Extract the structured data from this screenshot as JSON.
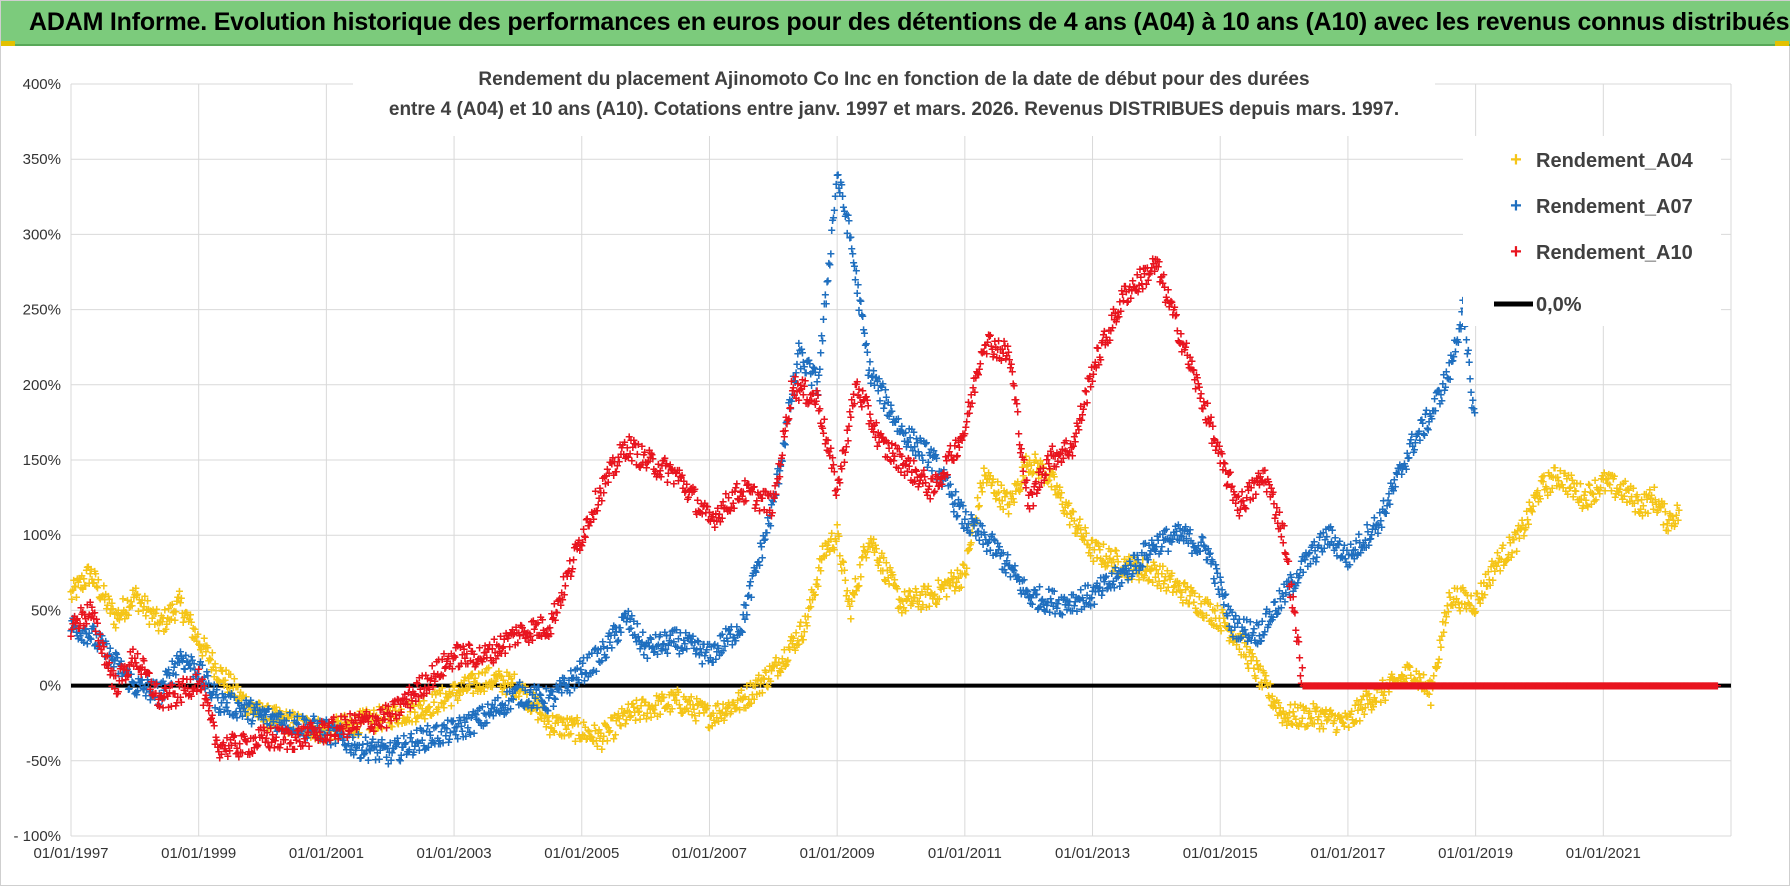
{
  "banner": {
    "title": "ADAM Informe. Evolution historique des performances en euros pour des détentions de 4 ans (A04) à 10 ans (A10) avec les revenus connus distribués"
  },
  "colors": {
    "a04": "#f5c518",
    "a07": "#1f6fbf",
    "a10": "#e8141e",
    "zero": "#000000",
    "banner": "#7ccb7c"
  },
  "chart_data": {
    "type": "scatter",
    "title_line1": "Rendement du placement Ajinomoto Co Inc en fonction de la date de début pour des durées",
    "title_line2": "entre 4 (A04) et 10 ans (A10).  Cotations entre janv. 1997 et mars. 2026. Revenus DISTRIBUES depuis mars. 1997.",
    "xlim": [
      1997.0,
      2023.0
    ],
    "ylim": [
      -100,
      400
    ],
    "y_ticks": [
      -100,
      -50,
      0,
      50,
      100,
      150,
      200,
      250,
      300,
      350,
      400
    ],
    "y_tick_labels": [
      "- 100%",
      "-50%",
      "0%",
      "50%",
      "100%",
      "150%",
      "200%",
      "250%",
      "300%",
      "350%",
      "400%"
    ],
    "x_ticks": [
      1997,
      1999,
      2001,
      2003,
      2005,
      2007,
      2009,
      2011,
      2013,
      2015,
      2017,
      2019,
      2021
    ],
    "x_tick_labels": [
      "01/01/1997",
      "01/01/1999",
      "01/01/2001",
      "01/01/2003",
      "01/01/2005",
      "01/01/2007",
      "01/01/2009",
      "01/01/2011",
      "01/01/2013",
      "01/01/2015",
      "01/01/2017",
      "01/01/2019",
      "01/01/2021"
    ],
    "legend_position": "top-right",
    "series": [
      {
        "name": "Rendement_A04",
        "key": "a04",
        "x": [
          1997.0,
          1997.3,
          1997.7,
          1998.0,
          1998.4,
          1998.7,
          1999.0,
          1999.3,
          1999.7,
          2000.0,
          2000.5,
          2001.0,
          2001.5,
          2002.0,
          2002.5,
          2003.0,
          2003.5,
          2004.0,
          2004.5,
          2005.0,
          2005.3,
          2005.7,
          2006.0,
          2006.5,
          2007.0,
          2007.5,
          2008.0,
          2008.5,
          2008.8,
          2009.0,
          2009.2,
          2009.5,
          2010.0,
          2010.5,
          2011.0,
          2011.3,
          2011.7,
          2012.0,
          2012.3,
          2012.7,
          2013.0,
          2013.5,
          2014.0,
          2014.5,
          2015.0,
          2015.3,
          2015.7,
          2016.0,
          2016.5,
          2017.0,
          2017.3,
          2017.7,
          2018.0,
          2018.3,
          2018.6,
          2019.0,
          2019.3,
          2019.7,
          2020.0,
          2020.3,
          2020.7,
          2021.0,
          2021.3,
          2021.6,
          2021.8,
          2022.0,
          2022.2
        ],
        "y": [
          60,
          75,
          45,
          60,
          40,
          55,
          30,
          10,
          -10,
          -20,
          -25,
          -30,
          -25,
          -20,
          -15,
          -5,
          5,
          0,
          -25,
          -30,
          -35,
          -20,
          -15,
          -10,
          -20,
          -10,
          10,
          40,
          90,
          100,
          50,
          100,
          55,
          60,
          75,
          140,
          120,
          150,
          140,
          110,
          90,
          80,
          75,
          60,
          45,
          30,
          0,
          -20,
          -20,
          -25,
          -10,
          0,
          10,
          -5,
          60,
          55,
          80,
          100,
          130,
          140,
          125,
          135,
          130,
          120,
          125,
          110,
          115
        ]
      },
      {
        "name": "Rendement_A07",
        "key": "a07",
        "x": [
          1997.0,
          1997.3,
          1997.7,
          1998.0,
          1998.4,
          1998.7,
          1999.0,
          1999.3,
          1999.7,
          2000.0,
          2000.5,
          2001.0,
          2001.5,
          2002.0,
          2002.5,
          2003.0,
          2003.5,
          2004.0,
          2004.5,
          2005.0,
          2005.3,
          2005.7,
          2006.0,
          2006.5,
          2007.0,
          2007.5,
          2008.0,
          2008.4,
          2008.7,
          2009.0,
          2009.2,
          2009.5,
          2010.0,
          2010.5,
          2011.0,
          2011.5,
          2012.0,
          2012.5,
          2013.0,
          2013.5,
          2014.0,
          2014.4,
          2014.8,
          2015.2,
          2015.6,
          2016.0,
          2016.3,
          2016.7,
          2017.0,
          2017.5,
          2018.0,
          2018.3,
          2018.6,
          2018.8,
          2019.0
        ],
        "y": [
          40,
          35,
          15,
          0,
          -5,
          20,
          10,
          -10,
          -15,
          -20,
          -25,
          -30,
          -40,
          -45,
          -35,
          -30,
          -20,
          -5,
          -10,
          10,
          20,
          45,
          25,
          30,
          20,
          40,
          120,
          220,
          200,
          340,
          300,
          210,
          170,
          150,
          110,
          90,
          60,
          55,
          60,
          75,
          95,
          100,
          90,
          40,
          35,
          60,
          80,
          100,
          85,
          110,
          160,
          180,
          210,
          250,
          170
        ]
      },
      {
        "name": "Rendement_A10",
        "key": "a10",
        "x": [
          1997.0,
          1997.3,
          1997.7,
          1998.0,
          1998.4,
          1998.7,
          1999.0,
          1999.3,
          1999.7,
          2000.0,
          2000.5,
          2001.0,
          2001.5,
          2002.0,
          2002.5,
          2003.0,
          2003.5,
          2004.0,
          2004.5,
          2004.8,
          2005.0,
          2005.3,
          2005.7,
          2006.0,
          2006.5,
          2007.0,
          2007.5,
          2008.0,
          2008.3,
          2008.7,
          2009.0,
          2009.3,
          2009.7,
          2010.0,
          2010.5,
          2011.0,
          2011.3,
          2011.7,
          2012.0,
          2012.3,
          2012.7,
          2013.0,
          2013.5,
          2014.0,
          2014.4,
          2014.8,
          2015.0,
          2015.3,
          2015.7,
          2016.0,
          2016.3,
          2017.0,
          2018.0,
          2019.0,
          2020.0,
          2021.0,
          2022.0,
          2022.8
        ],
        "y": [
          40,
          50,
          0,
          20,
          -10,
          -5,
          5,
          -40,
          -40,
          -35,
          -35,
          -30,
          -25,
          -20,
          0,
          20,
          20,
          35,
          40,
          75,
          100,
          130,
          160,
          150,
          140,
          110,
          130,
          120,
          200,
          190,
          130,
          200,
          160,
          150,
          130,
          170,
          230,
          220,
          120,
          150,
          160,
          210,
          260,
          280,
          230,
          180,
          150,
          120,
          140,
          100,
          0,
          0,
          0,
          0,
          0,
          0,
          0,
          0
        ]
      },
      {
        "name": "0,0%",
        "key": "zero",
        "x": [
          1997.0,
          2023.0
        ],
        "y": [
          0,
          0
        ]
      }
    ]
  }
}
